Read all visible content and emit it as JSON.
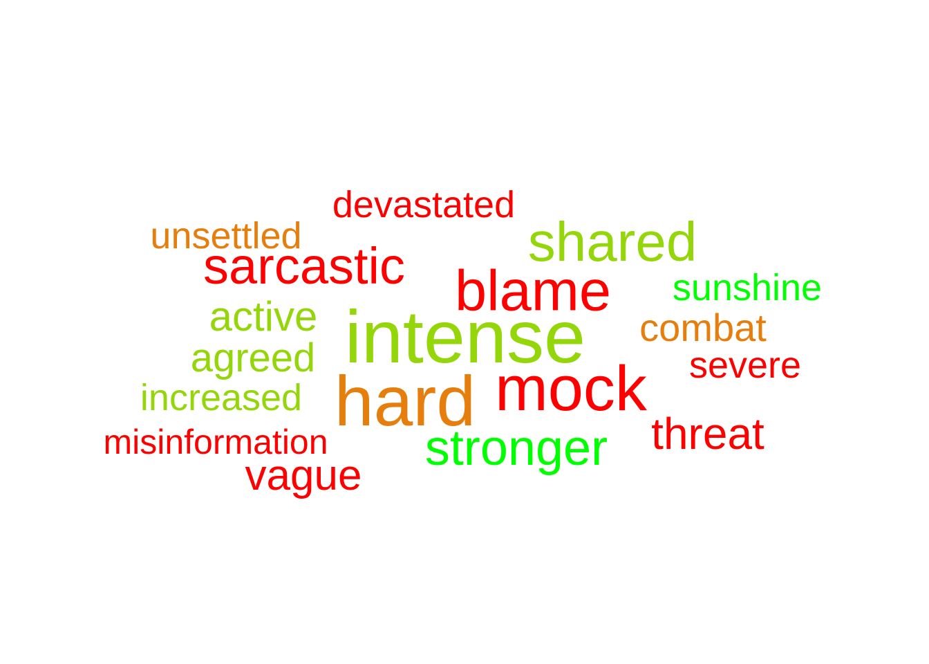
{
  "colors": {
    "red": "#ff0000",
    "orange": "#e67e0e",
    "lime": "#94d60a",
    "green": "#00ff00"
  },
  "words": [
    {
      "text": "intense",
      "color": "lime"
    },
    {
      "text": "hard",
      "color": "orange"
    },
    {
      "text": "mock",
      "color": "red"
    },
    {
      "text": "blame",
      "color": "red"
    },
    {
      "text": "shared",
      "color": "lime"
    },
    {
      "text": "sarcastic",
      "color": "red"
    },
    {
      "text": "stronger",
      "color": "green"
    },
    {
      "text": "devastated",
      "color": "red"
    },
    {
      "text": "unsettled",
      "color": "orange"
    },
    {
      "text": "sunshine",
      "color": "green"
    },
    {
      "text": "active",
      "color": "lime"
    },
    {
      "text": "combat",
      "color": "orange"
    },
    {
      "text": "agreed",
      "color": "lime"
    },
    {
      "text": "severe",
      "color": "red"
    },
    {
      "text": "increased",
      "color": "lime"
    },
    {
      "text": "misinformation",
      "color": "red"
    },
    {
      "text": "threat",
      "color": "red"
    },
    {
      "text": "vague",
      "color": "red"
    }
  ]
}
